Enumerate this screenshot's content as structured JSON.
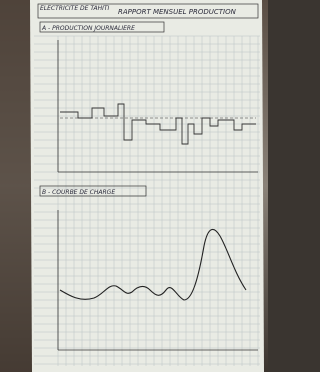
{
  "header": {
    "org": "ELECTRICITE DE TAHITI",
    "title": "RAPPORT MENSUEL PRODUCTION"
  },
  "sections": [
    {
      "title": "A - PRODUCTION JOURNALIERE"
    },
    {
      "title": "B - COURBE DE CHARGE"
    }
  ]
}
